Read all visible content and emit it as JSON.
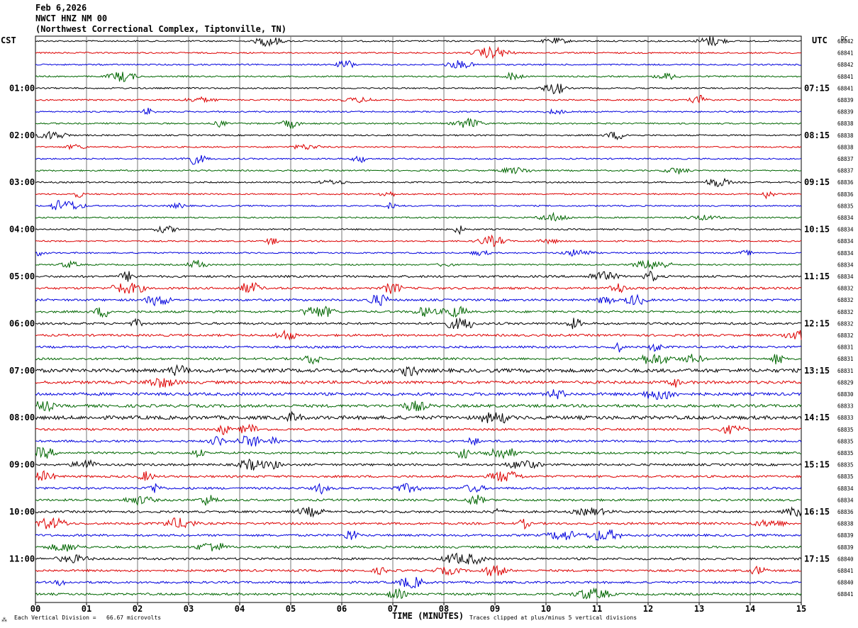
{
  "header": {
    "date": "Feb 6,2026",
    "station": "NWCT HNZ NM 00",
    "location": "(Northwest Correctional Complex, Tiptonville, TN)"
  },
  "labels": {
    "left_tz": "CST",
    "right_tz": "UTC",
    "dc": "DC"
  },
  "footer": {
    "corner": "⁂",
    "scale": "Each Vertical Division =   66.67 microvolts",
    "clip": "Traces clipped at plus/minus 5 vertical divisions"
  },
  "chart_data": {
    "type": "line",
    "title": "",
    "xlabel": "TIME (MINUTES)",
    "xlim": [
      0,
      15
    ],
    "x_ticks": [
      "00",
      "01",
      "02",
      "03",
      "04",
      "05",
      "06",
      "07",
      "08",
      "09",
      "10",
      "11",
      "12",
      "13",
      "14",
      "15"
    ],
    "row_minutes": 15,
    "row_count": 48,
    "trace_colors": [
      "#000000",
      "#dd0000",
      "#0000dd",
      "#006600"
    ],
    "left_hour_labels": [
      "01:00",
      "02:00",
      "03:00",
      "04:00",
      "05:00",
      "06:00",
      "07:00",
      "08:00",
      "09:00",
      "10:00",
      "11:00"
    ],
    "right_hour_labels": [
      "07:15",
      "08:15",
      "09:15",
      "10:15",
      "11:15",
      "12:15",
      "13:15",
      "14:15",
      "15:15",
      "16:15",
      "17:15"
    ],
    "hour_label_rows": [
      4,
      8,
      12,
      16,
      20,
      24,
      28,
      32,
      36,
      40,
      44
    ],
    "dc_offsets": [
      "68842",
      "68841",
      "68842",
      "68841",
      "68841",
      "68839",
      "68839",
      "68838",
      "68838",
      "68838",
      "68837",
      "68837",
      "68836",
      "68836",
      "68835",
      "68834",
      "68834",
      "68834",
      "68834",
      "68834",
      "68834",
      "68832",
      "68832",
      "68832",
      "68832",
      "68832",
      "68831",
      "68831",
      "68831",
      "68829",
      "68830",
      "68833",
      "68833",
      "68835",
      "68835",
      "68835",
      "68835",
      "68835",
      "68834",
      "68834",
      "68836",
      "68838",
      "68839",
      "68839",
      "68840",
      "68841",
      "68840",
      "68841"
    ],
    "amplitude_envelope": [
      2,
      2,
      2,
      2,
      2,
      2,
      2,
      2,
      2,
      2,
      2,
      2,
      2,
      2,
      2,
      2,
      2,
      2,
      2,
      2,
      3,
      3,
      3,
      3,
      3,
      3,
      3,
      3,
      5,
      4,
      4,
      4,
      5,
      3,
      3,
      3,
      3,
      3,
      3,
      3,
      3,
      3,
      3,
      3,
      3,
      3,
      3,
      3
    ]
  }
}
